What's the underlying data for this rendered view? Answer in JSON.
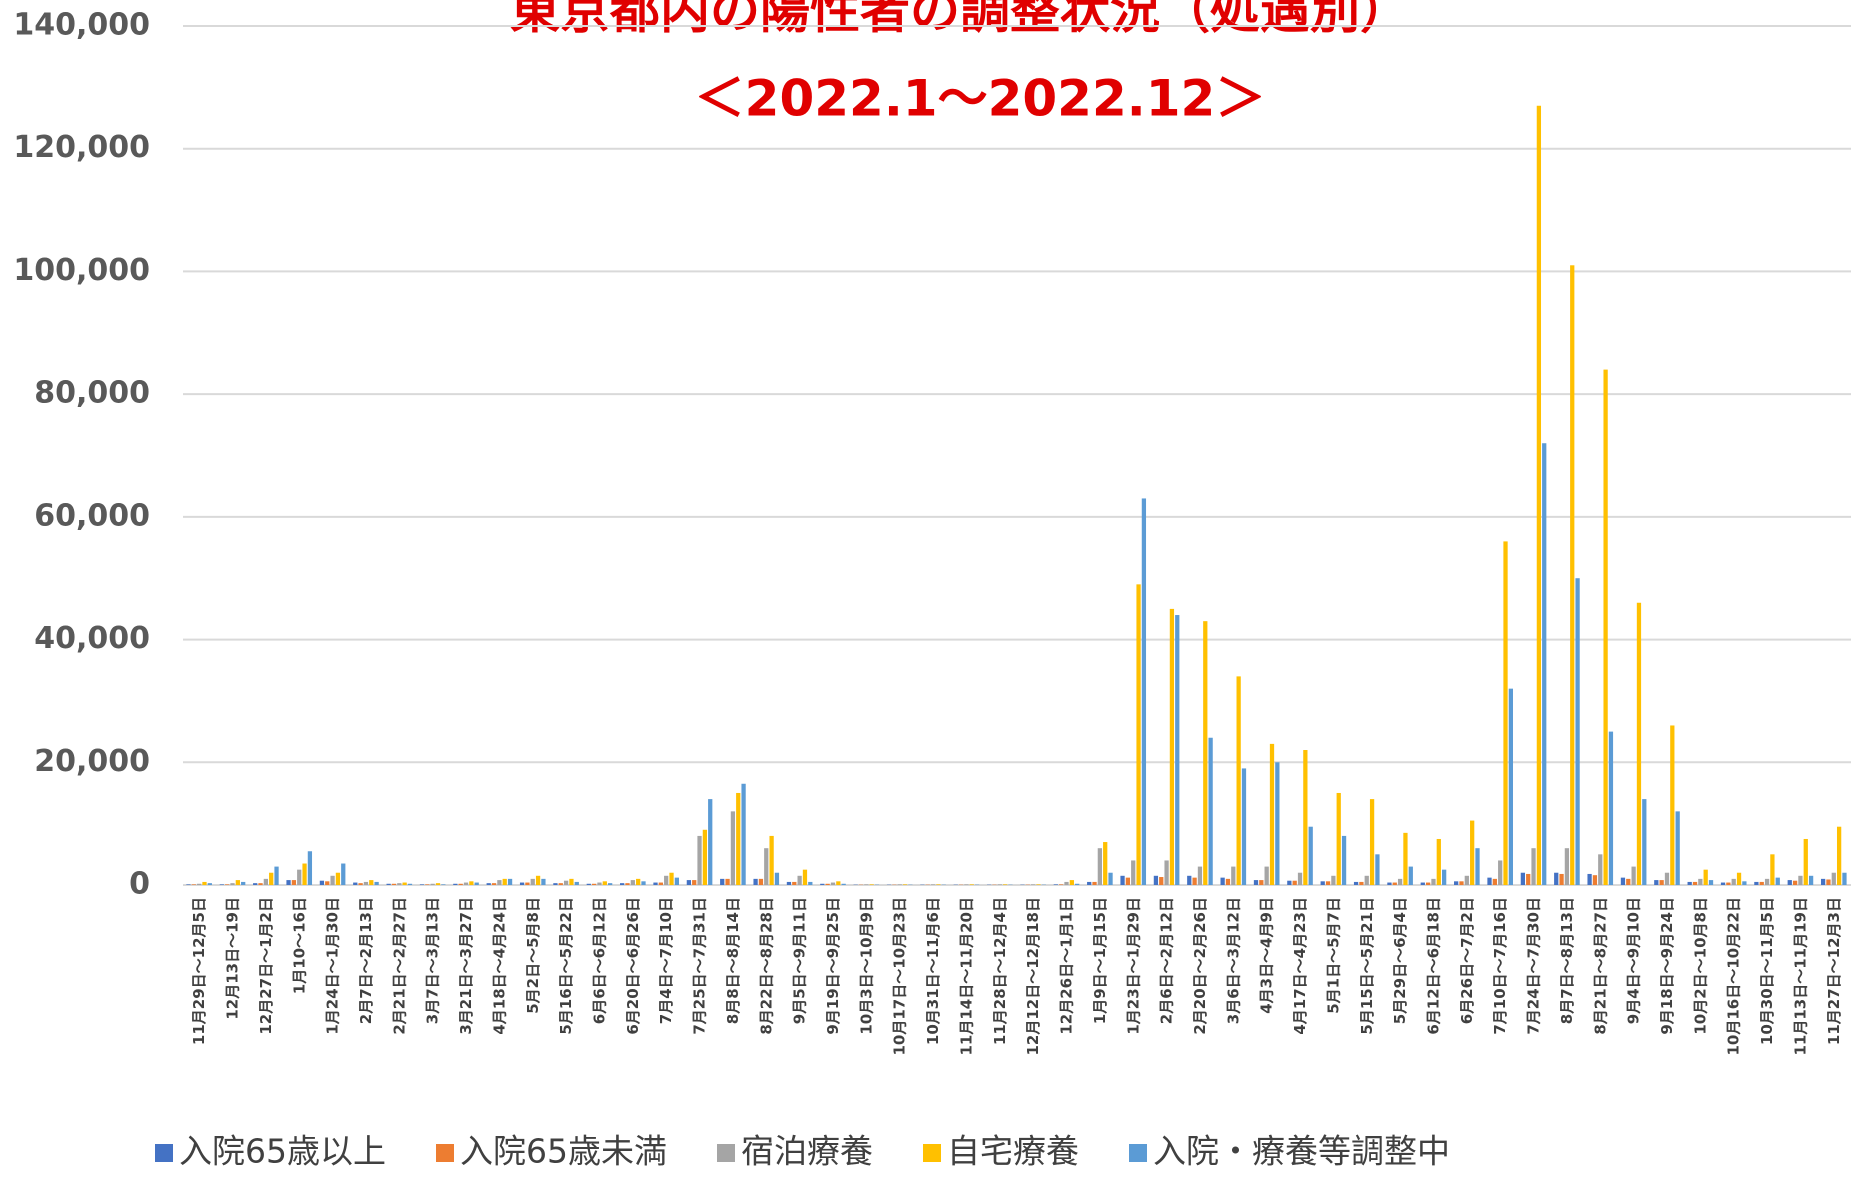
{
  "chart_data": {
    "type": "bar",
    "title": "東京都内の陽性者の調整状況（処遇別）",
    "subtitle": "＜2022.1～2022.12＞",
    "categories": [
      "11月29日～12月5日",
      "12月13日～19日",
      "12月27日～1月2日",
      "1月10～16日",
      "1月24日～1月30日",
      "2月7日～2月13日",
      "2月21日～2月27日",
      "3月7日～3月13日",
      "3月21日～3月27日",
      "4月18日～4月24日",
      "5月2日～5月8日",
      "5月16日～5月22日",
      "6月6日～6月12日",
      "6月20日～6月26日",
      "7月4日～7月10日",
      "7月25日～7月31日",
      "8月8日～8月14日",
      "8月22日～8月28日",
      "9月5日～9月11日",
      "9月19日～9月25日",
      "10月3日～10月9日",
      "10月17日～10月23日",
      "10月31日～11月6日",
      "11月14日～11月20日",
      "11月28日～12月4日",
      "12月12日～12月18日",
      "12月26日～1月1日",
      "1月9日～1月15日",
      "1月23日～1月29日",
      "2月6日～2月12日",
      "2月20日～2月26日",
      "3月6日～3月12日",
      "4月3日～4月9日",
      "4月17日～4月23日",
      "5月1日～5月7日",
      "5月15日～5月21日",
      "5月29日～6月4日",
      "6月12日～6月18日",
      "6月26日～7月2日",
      "7月10日～7月16日",
      "7月24日～7月30日",
      "8月7日～8月13日",
      "8月21日～8月27日",
      "9月4日～9月10日",
      "9月18日～9月24日",
      "10月2日～10月8日",
      "10月16日～10月22日",
      "10月30日～11月5日",
      "11月13日～11月19日",
      "11月27日～12月3日"
    ],
    "series": [
      {
        "name": "入院65歳以上",
        "color": "#4472c4",
        "values": [
          100,
          100,
          300,
          800,
          700,
          400,
          200,
          100,
          200,
          300,
          400,
          300,
          200,
          300,
          400,
          800,
          1000,
          1000,
          500,
          200,
          50,
          50,
          50,
          50,
          50,
          50,
          100,
          500,
          1500,
          1500,
          1500,
          1200,
          800,
          700,
          600,
          500,
          400,
          400,
          600,
          1200,
          2000,
          2000,
          1800,
          1200,
          800,
          500,
          400,
          500,
          800,
          1000
        ]
      },
      {
        "name": "入院65歳未満",
        "color": "#ed7d31",
        "values": [
          100,
          100,
          300,
          800,
          600,
          300,
          200,
          100,
          200,
          300,
          400,
          300,
          200,
          300,
          400,
          800,
          1000,
          1000,
          500,
          200,
          50,
          50,
          50,
          50,
          50,
          50,
          100,
          500,
          1200,
          1300,
          1200,
          1000,
          800,
          700,
          600,
          500,
          400,
          400,
          600,
          1000,
          1800,
          1800,
          1600,
          1000,
          800,
          500,
          400,
          500,
          700,
          900
        ]
      },
      {
        "name": "宿泊療養",
        "color": "#a5a5a5",
        "values": [
          200,
          300,
          1000,
          2500,
          1500,
          500,
          300,
          200,
          400,
          800,
          1000,
          700,
          400,
          800,
          1500,
          8000,
          12000,
          6000,
          1500,
          400,
          100,
          100,
          100,
          100,
          100,
          100,
          500,
          6000,
          4000,
          4000,
          3000,
          3000,
          3000,
          2000,
          1500,
          1500,
          1000,
          1000,
          1500,
          4000,
          6000,
          6000,
          5000,
          3000,
          2000,
          1000,
          1000,
          1000,
          1500,
          2000
        ]
      },
      {
        "name": "自宅療養",
        "color": "#ffc000",
        "values": [
          500,
          800,
          2000,
          3500,
          2000,
          800,
          400,
          300,
          600,
          1000,
          1500,
          1000,
          600,
          1000,
          2000,
          9000,
          15000,
          8000,
          2500,
          600,
          100,
          100,
          100,
          100,
          100,
          100,
          800,
          7000,
          49000,
          45000,
          43000,
          34000,
          23000,
          22000,
          15000,
          14000,
          8500,
          7500,
          10500,
          56000,
          127000,
          101000,
          84000,
          46000,
          26000,
          2500,
          2000,
          5000,
          7500,
          9500
        ]
      },
      {
        "name": "入院・療養等調整中",
        "color": "#5b9bd5",
        "values": [
          300,
          500,
          3000,
          5500,
          3500,
          500,
          200,
          100,
          400,
          1000,
          1000,
          500,
          300,
          600,
          1200,
          14000,
          16500,
          2000,
          500,
          200,
          50,
          50,
          50,
          50,
          50,
          50,
          200,
          2000,
          63000,
          44000,
          24000,
          19000,
          20000,
          9500,
          8000,
          5000,
          3000,
          2500,
          6000,
          32000,
          72000,
          50000,
          25000,
          14000,
          12000,
          800,
          600,
          1200,
          1500,
          2000
        ]
      }
    ],
    "ylim": [
      0,
      140000
    ],
    "yticks": [
      0,
      {
        "value": 20000,
        "label": "20,000"
      },
      {
        "value": 40000,
        "label": "40,000"
      },
      {
        "value": 60000,
        "label": "60,000"
      },
      {
        "value": 80000,
        "label": "80,000"
      },
      {
        "value": 100000,
        "label": "100,000"
      },
      {
        "value": 120000,
        "label": "120,000"
      },
      {
        "value": 140000,
        "label": "140,000"
      }
    ],
    "grid": true,
    "legend": "bottom"
  }
}
